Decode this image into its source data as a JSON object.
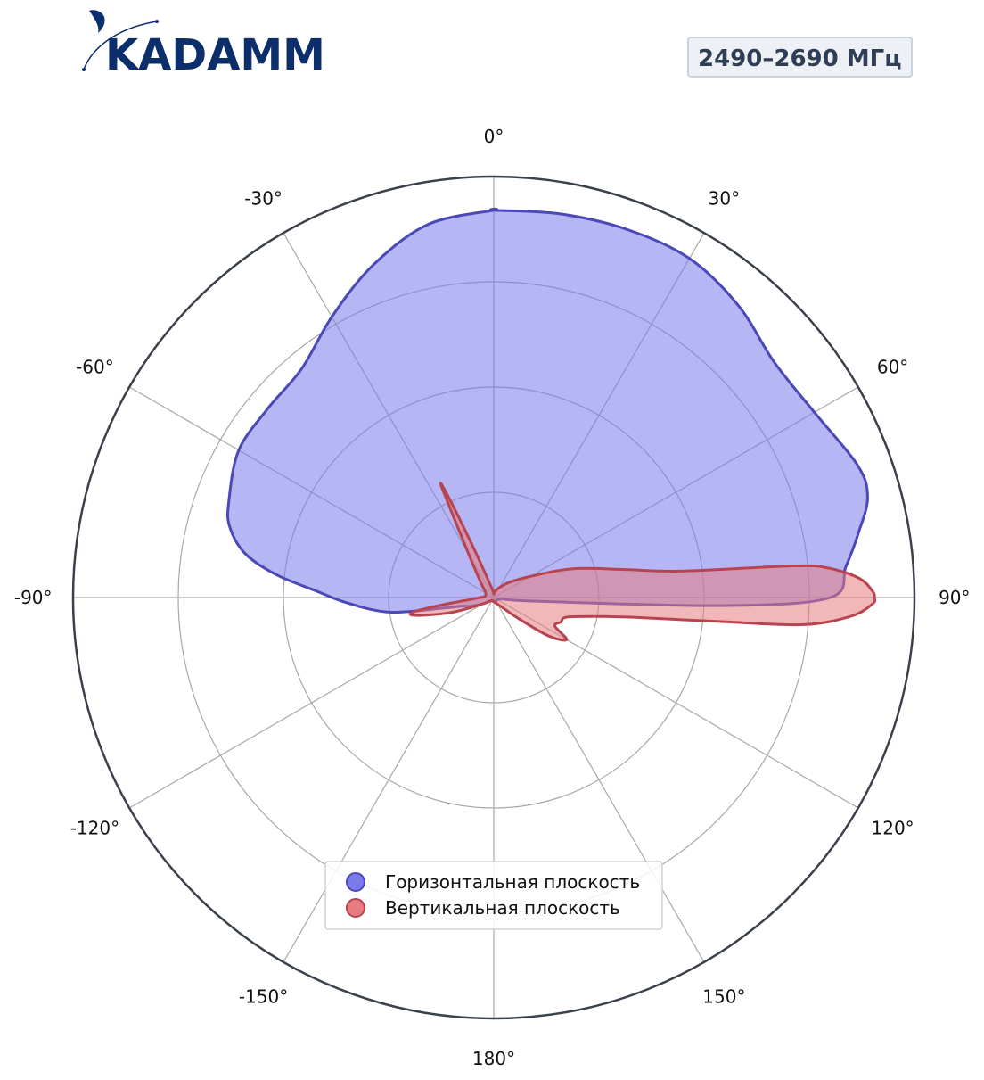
{
  "header": {
    "logo_text": "KADAMM",
    "frequency_label": "2490–2690 МГц"
  },
  "colors": {
    "horizontal_fill": "#7a7aeb",
    "horizontal_stroke": "#4b48b8",
    "vertical_fill": "#e77c80",
    "vertical_stroke": "#b84450",
    "logo": "#0c2f6b",
    "grid": "#a8a8a8",
    "outer_ring": "#3b414b"
  },
  "chart_data": {
    "type": "polar",
    "angle_ticks": [
      "0°",
      "30°",
      "60°",
      "90°",
      "120°",
      "150°",
      "180°",
      "-150°",
      "-120°",
      "-90°",
      "-60°",
      "-30°"
    ],
    "angle_tick_values": [
      0,
      30,
      60,
      90,
      120,
      150,
      180,
      -150,
      -120,
      -90,
      -60,
      -30
    ],
    "radial_range": [
      0,
      1
    ],
    "radial_gridlines": [
      0.25,
      0.5,
      0.75
    ],
    "grid": true,
    "legend_position": "bottom-center",
    "series": [
      {
        "name": "Горизонтальная плоскость",
        "points": [
          [
            0,
            0.92
          ],
          [
            10,
            0.925
          ],
          [
            20,
            0.93
          ],
          [
            30,
            0.93
          ],
          [
            40,
            0.905
          ],
          [
            50,
            0.87
          ],
          [
            60,
            0.88
          ],
          [
            70,
            0.92
          ],
          [
            75,
            0.92
          ],
          [
            80,
            0.88
          ],
          [
            85,
            0.84
          ],
          [
            90,
            0.8
          ],
          [
            92,
            0.55
          ],
          [
            95,
            0.1
          ],
          [
            100,
            0.02
          ],
          [
            140,
            0.01
          ],
          [
            180,
            0.01
          ],
          [
            220,
            0.01
          ],
          [
            240,
            0.03
          ],
          [
            250,
            0.06
          ],
          [
            255,
            0.08
          ],
          [
            258,
            0.12
          ],
          [
            262,
            0.25
          ],
          [
            268,
            0.35
          ],
          [
            272,
            0.42
          ],
          [
            276,
            0.52
          ],
          [
            280,
            0.6
          ],
          [
            285,
            0.65
          ],
          [
            290,
            0.67
          ],
          [
            300,
            0.7
          ],
          [
            310,
            0.7
          ],
          [
            320,
            0.71
          ],
          [
            330,
            0.77
          ],
          [
            340,
            0.84
          ],
          [
            350,
            0.9
          ],
          [
            360,
            0.92
          ]
        ]
      },
      {
        "name": "Вертикальная плоскость",
        "points": [
          [
            0,
            0.01
          ],
          [
            20,
            0.02
          ],
          [
            45,
            0.05
          ],
          [
            60,
            0.1
          ],
          [
            70,
            0.2
          ],
          [
            78,
            0.32
          ],
          [
            82,
            0.45
          ],
          [
            84,
            0.72
          ],
          [
            85,
            0.8
          ],
          [
            87,
            0.87
          ],
          [
            89,
            0.9
          ],
          [
            90,
            0.905
          ],
          [
            91,
            0.9
          ],
          [
            93,
            0.85
          ],
          [
            95,
            0.74
          ],
          [
            96,
            0.55
          ],
          [
            98,
            0.34
          ],
          [
            100,
            0.26
          ],
          [
            105,
            0.18
          ],
          [
            110,
            0.17
          ],
          [
            115,
            0.16
          ],
          [
            120,
            0.2
          ],
          [
            125,
            0.16
          ],
          [
            130,
            0.08
          ],
          [
            140,
            0.03
          ],
          [
            180,
            0.01
          ],
          [
            220,
            0.01
          ],
          [
            240,
            0.03
          ],
          [
            250,
            0.1
          ],
          [
            255,
            0.16
          ],
          [
            258,
            0.2
          ],
          [
            260,
            0.19
          ],
          [
            262,
            0.12
          ],
          [
            268,
            0.04
          ],
          [
            290,
            0.02
          ],
          [
            320,
            0.05
          ],
          [
            330,
            0.12
          ],
          [
            334,
            0.24
          ],
          [
            335,
            0.3
          ],
          [
            336,
            0.24
          ],
          [
            338,
            0.12
          ],
          [
            345,
            0.03
          ],
          [
            360,
            0.01
          ]
        ]
      }
    ]
  }
}
